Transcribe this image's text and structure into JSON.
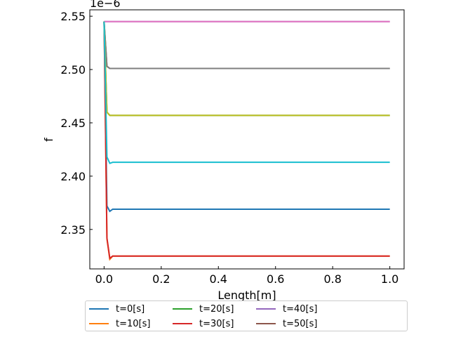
{
  "chart_data": {
    "type": "line",
    "title": "",
    "xlabel": "Length[m]",
    "ylabel": "f",
    "y_offset_label": "1e−6",
    "xlim": [
      -0.05,
      1.05
    ],
    "ylim": [
      2.313,
      2.556
    ],
    "xticks": [
      0.0,
      0.2,
      0.4,
      0.6,
      0.8,
      1.0
    ],
    "xtick_labels": [
      "0.0",
      "0.2",
      "0.4",
      "0.6",
      "0.8",
      "1.0"
    ],
    "yticks": [
      2.35,
      2.4,
      2.45,
      2.5,
      2.55
    ],
    "ytick_labels": [
      "2.35",
      "2.40",
      "2.45",
      "2.50",
      "2.55"
    ],
    "grid": false,
    "legend_position": "below the plot, 4 columns",
    "series": [
      {
        "name": "t=0[s]",
        "color": "#1f77b4",
        "x": [
          0.0,
          0.01,
          0.02,
          0.03,
          1.0
        ],
        "y": [
          2.545,
          2.372,
          2.367,
          2.369,
          2.369
        ]
      },
      {
        "name": "t=10[s]",
        "color": "#ff7f0e",
        "x": [
          0.0,
          0.01,
          0.02,
          0.03,
          1.0
        ],
        "y": [
          2.545,
          2.341,
          2.322,
          2.325,
          2.325
        ]
      },
      {
        "name": "t=20[s]",
        "color": "#2ca02c",
        "x": [
          0.0,
          0.01,
          0.02,
          0.03,
          1.0
        ],
        "y": [
          2.545,
          2.46,
          2.457,
          2.457,
          2.457
        ]
      },
      {
        "name": "t=30[s]",
        "color": "#d62728",
        "x": [
          0.0,
          0.01,
          0.02,
          0.03,
          1.0
        ],
        "y": [
          2.545,
          2.342,
          2.323,
          2.325,
          2.325
        ]
      },
      {
        "name": "t=40[s]",
        "color": "#9467bd",
        "x": [
          0.0,
          1.0
        ],
        "y": [
          2.545,
          2.545
        ]
      },
      {
        "name": "t=50[s]",
        "color": "#8c564b",
        "x": [
          0.0,
          0.01,
          0.02,
          0.03,
          1.0
        ],
        "y": [
          2.545,
          2.503,
          2.501,
          2.501,
          2.501
        ]
      },
      {
        "name": "",
        "color": "#e377c2",
        "x": [
          0.0,
          1.0
        ],
        "y": [
          2.545,
          2.545
        ]
      },
      {
        "name": "",
        "color": "#7f7f7f",
        "x": [
          0.0,
          0.01,
          0.02,
          0.03,
          1.0
        ],
        "y": [
          2.545,
          2.503,
          2.501,
          2.501,
          2.501
        ]
      },
      {
        "name": "",
        "color": "#bcbd22",
        "x": [
          0.0,
          0.01,
          0.02,
          0.03,
          1.0
        ],
        "y": [
          2.545,
          2.46,
          2.457,
          2.457,
          2.457
        ]
      },
      {
        "name": "",
        "color": "#17becf",
        "x": [
          0.0,
          0.01,
          0.02,
          0.03,
          1.0
        ],
        "y": [
          2.545,
          2.418,
          2.412,
          2.413,
          2.413
        ]
      }
    ]
  }
}
